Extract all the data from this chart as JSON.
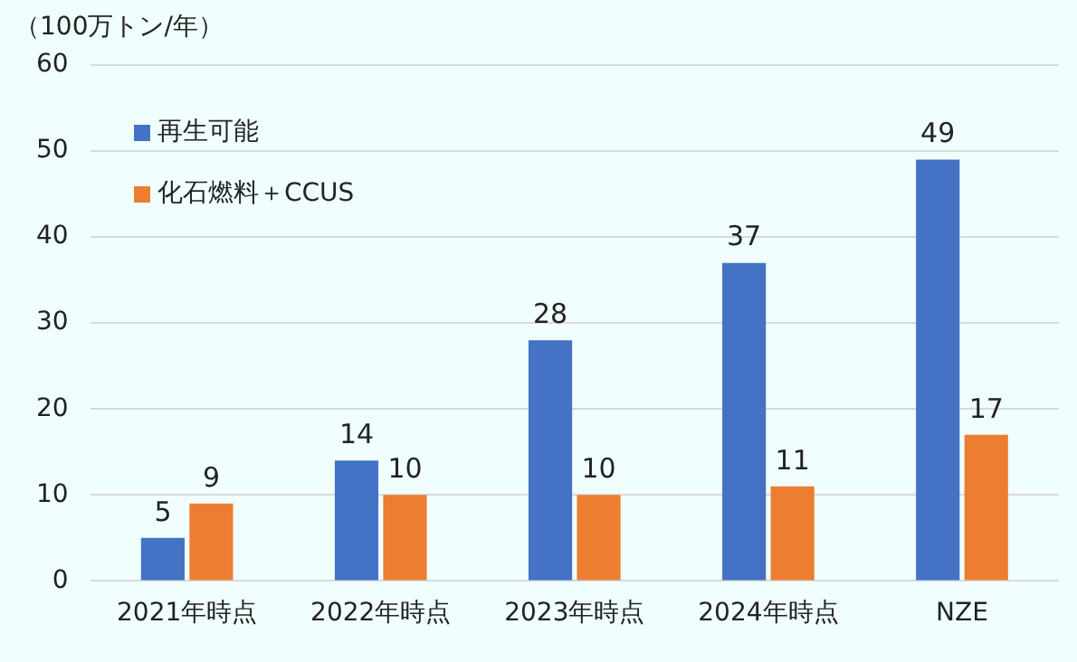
{
  "chart_data": {
    "type": "bar",
    "ylabel": "（100万トン/年）",
    "categories": [
      "2021年時点",
      "2022年時点",
      "2023年時点",
      "2024年時点",
      "NZE"
    ],
    "series": [
      {
        "name": "再生可能",
        "color": "#4472c4",
        "values": [
          5,
          14,
          28,
          37,
          49
        ]
      },
      {
        "name": "化石燃料＋CCUS",
        "color": "#ed7d31",
        "values": [
          9,
          10,
          10,
          11,
          17
        ]
      }
    ],
    "ylim": [
      0,
      60
    ],
    "yticks": [
      0,
      10,
      20,
      30,
      40,
      50,
      60
    ],
    "grid": "y",
    "legend": "top left",
    "data_labels": true
  }
}
